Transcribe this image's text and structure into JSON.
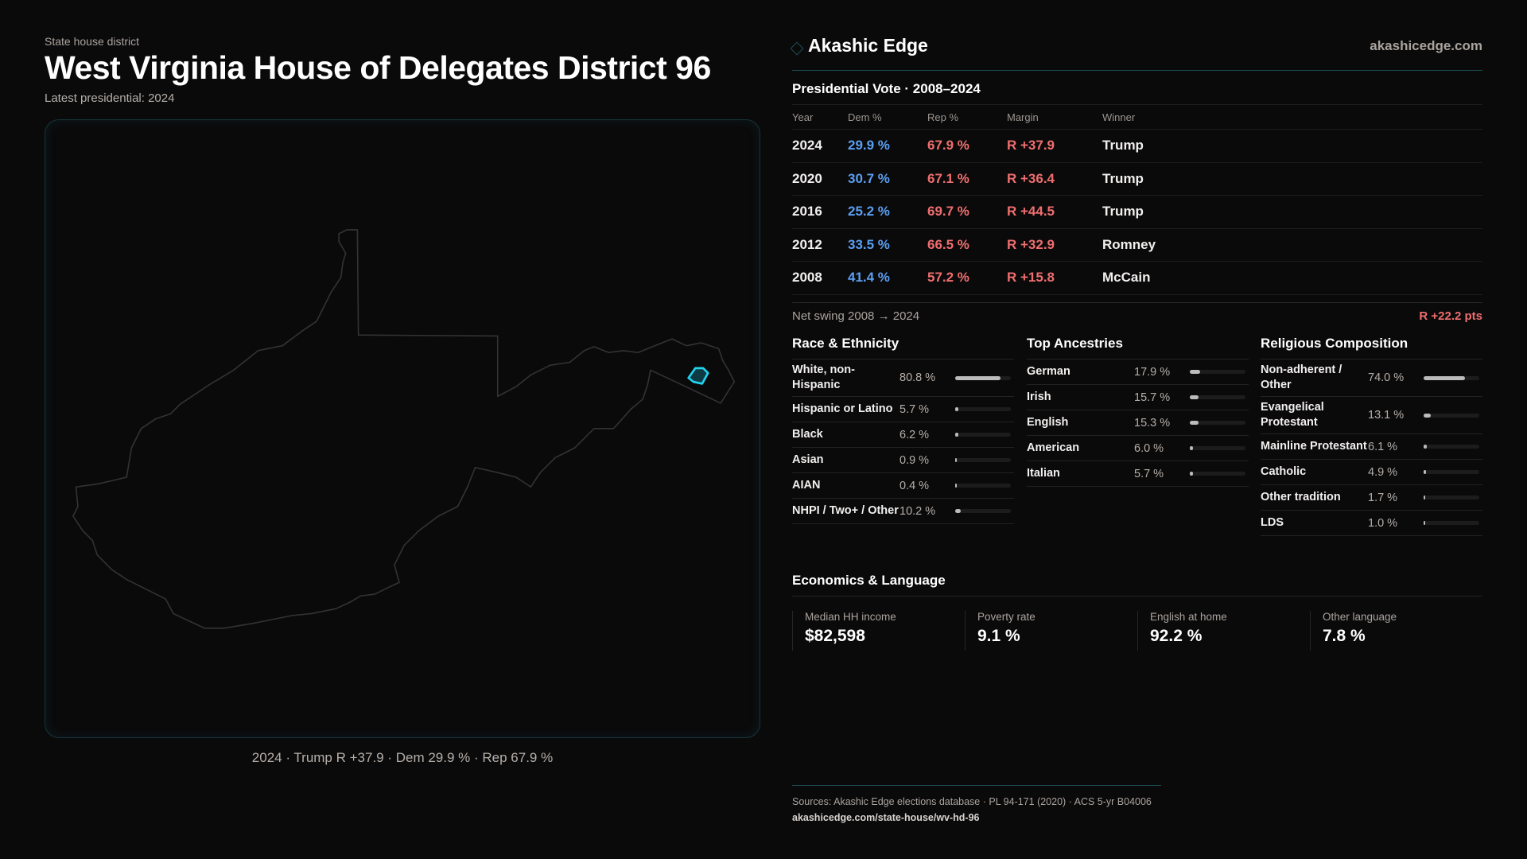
{
  "header": {
    "kicker": "State house district",
    "title": "West Virginia House of Delegates District 96",
    "latest": "Latest presidential: 2024"
  },
  "map": {
    "caption": "2024 · Trump R +37.9 · Dem 29.9 % · Rep 67.9 %",
    "highlight_color": "#22d3ee"
  },
  "brand": {
    "name": "Akashic Edge",
    "site": "akashicedge.com"
  },
  "presidential": {
    "title": "Presidential Vote · 2008–2024",
    "headers": [
      "Year",
      "Dem %",
      "Rep %",
      "Margin",
      "Winner"
    ],
    "rows": [
      {
        "year": "2024",
        "dem": "29.9 %",
        "rep": "67.9 %",
        "margin": "R +37.9",
        "winner": "Trump"
      },
      {
        "year": "2020",
        "dem": "30.7 %",
        "rep": "67.1 %",
        "margin": "R +36.4",
        "winner": "Trump"
      },
      {
        "year": "2016",
        "dem": "25.2 %",
        "rep": "69.7 %",
        "margin": "R +44.5",
        "winner": "Trump"
      },
      {
        "year": "2012",
        "dem": "33.5 %",
        "rep": "66.5 %",
        "margin": "R +32.9",
        "winner": "Romney"
      },
      {
        "year": "2008",
        "dem": "41.4 %",
        "rep": "57.2 %",
        "margin": "R +15.8",
        "winner": "McCain"
      }
    ],
    "swing_label": "Net swing 2008 → 2024",
    "swing_value": "R +22.2 pts"
  },
  "race": {
    "title": "Race & Ethnicity",
    "items": [
      {
        "label": "White, non-Hispanic",
        "pct": "80.8 %",
        "value": 80.8
      },
      {
        "label": "Hispanic or Latino",
        "pct": "5.7 %",
        "value": 5.7
      },
      {
        "label": "Black",
        "pct": "6.2 %",
        "value": 6.2
      },
      {
        "label": "Asian",
        "pct": "0.9 %",
        "value": 0.9
      },
      {
        "label": "AIAN",
        "pct": "0.4 %",
        "value": 0.4
      },
      {
        "label": "NHPI / Two+ / Other",
        "pct": "10.2 %",
        "value": 10.2
      }
    ]
  },
  "ancestry": {
    "title": "Top Ancestries",
    "items": [
      {
        "label": "German",
        "pct": "17.9 %",
        "value": 17.9
      },
      {
        "label": "Irish",
        "pct": "15.7 %",
        "value": 15.7
      },
      {
        "label": "English",
        "pct": "15.3 %",
        "value": 15.3
      },
      {
        "label": "American",
        "pct": "6.0 %",
        "value": 6.0
      },
      {
        "label": "Italian",
        "pct": "5.7 %",
        "value": 5.7
      }
    ]
  },
  "religion": {
    "title": "Religious Composition",
    "items": [
      {
        "label": "Non-adherent / Other",
        "pct": "74.0 %",
        "value": 74.0
      },
      {
        "label": "Evangelical Protestant",
        "pct": "13.1 %",
        "value": 13.1
      },
      {
        "label": "Mainline Protestant",
        "pct": "6.1 %",
        "value": 6.1
      },
      {
        "label": "Catholic",
        "pct": "4.9 %",
        "value": 4.9
      },
      {
        "label": "Other tradition",
        "pct": "1.7 %",
        "value": 1.7
      },
      {
        "label": "LDS",
        "pct": "1.0 %",
        "value": 1.0
      }
    ]
  },
  "economics": {
    "title": "Economics & Language",
    "stats": [
      {
        "label": "Median HH income",
        "value": "$82,598"
      },
      {
        "label": "Poverty rate",
        "value": "9.1 %"
      },
      {
        "label": "English at home",
        "value": "92.2 %"
      },
      {
        "label": "Other language",
        "value": "7.8 %"
      }
    ]
  },
  "footer": {
    "sources": "Sources: Akashic Edge elections database · PL 94-171 (2020) · ACS 5-yr B04006",
    "url": "akashicedge.com/state-house/wv-hd-96"
  }
}
